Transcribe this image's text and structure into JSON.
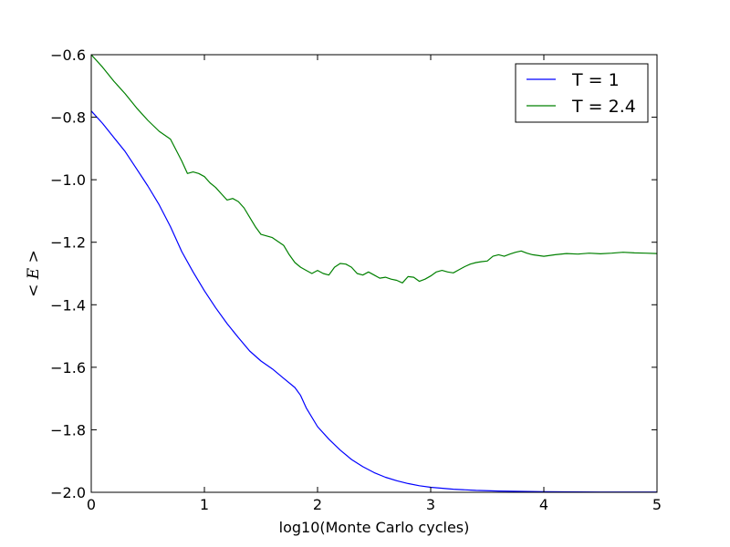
{
  "chart_data": {
    "type": "line",
    "title": "",
    "xlabel": "log10(Monte Carlo cycles)",
    "ylabel": "< E >",
    "xlim": [
      0,
      5
    ],
    "ylim": [
      -2.0,
      -0.6
    ],
    "xticks": [
      0,
      1,
      2,
      3,
      4,
      5
    ],
    "xtick_labels": [
      "0",
      "1",
      "2",
      "3",
      "4",
      "5"
    ],
    "yticks": [
      -2.0,
      -1.8,
      -1.6,
      -1.4,
      -1.2,
      -1.0,
      -0.8,
      -0.6
    ],
    "ytick_labels": [
      "−2.0",
      "−1.8",
      "−1.6",
      "−1.4",
      "−1.2",
      "−1.0",
      "−0.8",
      "−0.6"
    ],
    "grid": false,
    "legend": {
      "position": "top-right"
    },
    "series": [
      {
        "name": "T = 1",
        "color": "#0000ff",
        "points": [
          [
            0.0,
            -0.78
          ],
          [
            0.1,
            -0.82
          ],
          [
            0.2,
            -0.865
          ],
          [
            0.3,
            -0.91
          ],
          [
            0.4,
            -0.965
          ],
          [
            0.5,
            -1.02
          ],
          [
            0.6,
            -1.08
          ],
          [
            0.7,
            -1.15
          ],
          [
            0.8,
            -1.23
          ],
          [
            0.9,
            -1.295
          ],
          [
            1.0,
            -1.355
          ],
          [
            1.1,
            -1.41
          ],
          [
            1.2,
            -1.46
          ],
          [
            1.3,
            -1.505
          ],
          [
            1.4,
            -1.548
          ],
          [
            1.5,
            -1.58
          ],
          [
            1.6,
            -1.605
          ],
          [
            1.7,
            -1.635
          ],
          [
            1.8,
            -1.665
          ],
          [
            1.85,
            -1.69
          ],
          [
            1.9,
            -1.73
          ],
          [
            2.0,
            -1.79
          ],
          [
            2.1,
            -1.83
          ],
          [
            2.2,
            -1.865
          ],
          [
            2.3,
            -1.895
          ],
          [
            2.4,
            -1.918
          ],
          [
            2.5,
            -1.937
          ],
          [
            2.6,
            -1.952
          ],
          [
            2.7,
            -1.963
          ],
          [
            2.8,
            -1.972
          ],
          [
            2.9,
            -1.979
          ],
          [
            3.0,
            -1.984
          ],
          [
            3.2,
            -1.99
          ],
          [
            3.4,
            -1.994
          ],
          [
            3.6,
            -1.996
          ],
          [
            3.8,
            -1.997
          ],
          [
            4.0,
            -1.998
          ],
          [
            4.5,
            -1.999
          ],
          [
            5.0,
            -1.999
          ]
        ]
      },
      {
        "name": "T = 2.4",
        "color": "#008000",
        "points": [
          [
            0.0,
            -0.6
          ],
          [
            0.1,
            -0.64
          ],
          [
            0.2,
            -0.685
          ],
          [
            0.3,
            -0.725
          ],
          [
            0.4,
            -0.77
          ],
          [
            0.5,
            -0.81
          ],
          [
            0.6,
            -0.845
          ],
          [
            0.7,
            -0.87
          ],
          [
            0.75,
            -0.905
          ],
          [
            0.8,
            -0.94
          ],
          [
            0.85,
            -0.98
          ],
          [
            0.9,
            -0.975
          ],
          [
            0.95,
            -0.98
          ],
          [
            1.0,
            -0.99
          ],
          [
            1.05,
            -1.01
          ],
          [
            1.1,
            -1.025
          ],
          [
            1.15,
            -1.045
          ],
          [
            1.2,
            -1.065
          ],
          [
            1.25,
            -1.06
          ],
          [
            1.3,
            -1.07
          ],
          [
            1.35,
            -1.09
          ],
          [
            1.4,
            -1.12
          ],
          [
            1.45,
            -1.15
          ],
          [
            1.5,
            -1.175
          ],
          [
            1.6,
            -1.185
          ],
          [
            1.7,
            -1.21
          ],
          [
            1.75,
            -1.24
          ],
          [
            1.8,
            -1.265
          ],
          [
            1.85,
            -1.28
          ],
          [
            1.9,
            -1.29
          ],
          [
            1.95,
            -1.3
          ],
          [
            2.0,
            -1.29
          ],
          [
            2.05,
            -1.3
          ],
          [
            2.1,
            -1.305
          ],
          [
            2.15,
            -1.28
          ],
          [
            2.2,
            -1.268
          ],
          [
            2.25,
            -1.27
          ],
          [
            2.3,
            -1.28
          ],
          [
            2.35,
            -1.3
          ],
          [
            2.4,
            -1.305
          ],
          [
            2.45,
            -1.295
          ],
          [
            2.5,
            -1.305
          ],
          [
            2.55,
            -1.315
          ],
          [
            2.6,
            -1.312
          ],
          [
            2.65,
            -1.318
          ],
          [
            2.7,
            -1.322
          ],
          [
            2.75,
            -1.33
          ],
          [
            2.8,
            -1.31
          ],
          [
            2.85,
            -1.312
          ],
          [
            2.9,
            -1.325
          ],
          [
            2.95,
            -1.318
          ],
          [
            3.0,
            -1.308
          ],
          [
            3.05,
            -1.295
          ],
          [
            3.1,
            -1.29
          ],
          [
            3.15,
            -1.295
          ],
          [
            3.2,
            -1.298
          ],
          [
            3.25,
            -1.288
          ],
          [
            3.3,
            -1.278
          ],
          [
            3.35,
            -1.27
          ],
          [
            3.4,
            -1.265
          ],
          [
            3.45,
            -1.262
          ],
          [
            3.5,
            -1.26
          ],
          [
            3.55,
            -1.245
          ],
          [
            3.6,
            -1.24
          ],
          [
            3.65,
            -1.245
          ],
          [
            3.7,
            -1.238
          ],
          [
            3.75,
            -1.232
          ],
          [
            3.8,
            -1.228
          ],
          [
            3.85,
            -1.235
          ],
          [
            3.9,
            -1.24
          ],
          [
            4.0,
            -1.245
          ],
          [
            4.1,
            -1.24
          ],
          [
            4.2,
            -1.236
          ],
          [
            4.3,
            -1.238
          ],
          [
            4.4,
            -1.235
          ],
          [
            4.5,
            -1.237
          ],
          [
            4.6,
            -1.235
          ],
          [
            4.7,
            -1.232
          ],
          [
            4.8,
            -1.234
          ],
          [
            4.9,
            -1.235
          ],
          [
            5.0,
            -1.236
          ]
        ]
      }
    ]
  }
}
